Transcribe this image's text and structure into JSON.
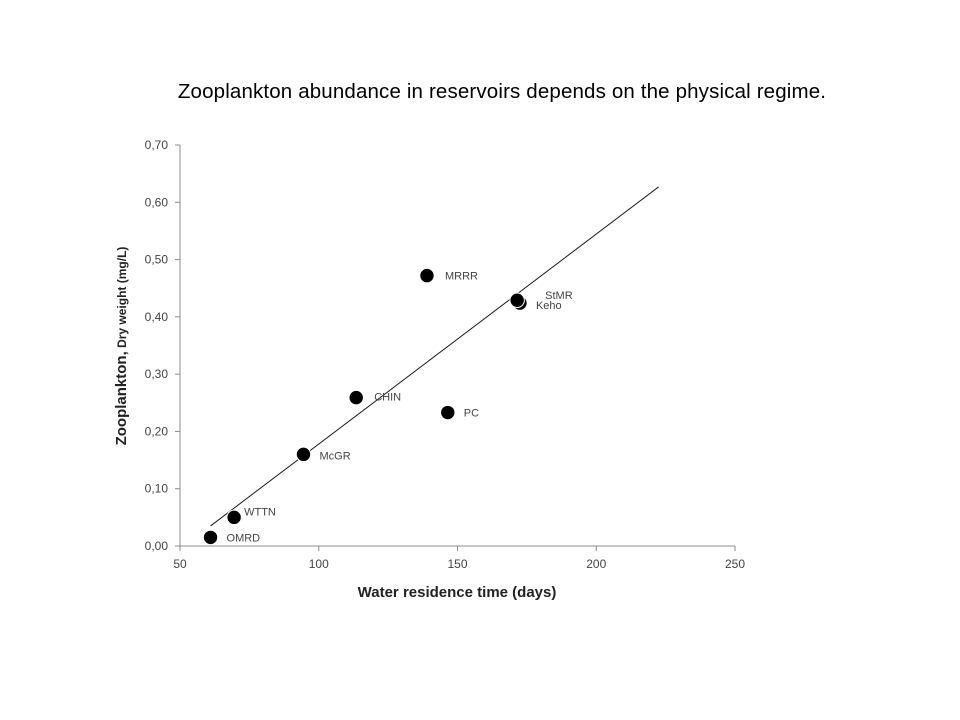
{
  "slide": {
    "title": "Zooplankton abundance in reservoirs depends on the physical regime."
  },
  "chart_data": {
    "type": "scatter",
    "xlabel": "Water residence time (days)",
    "ylabel": "Zooplankton, Dry weight (mg/L)",
    "ylabel_main": "Zooplankton,",
    "ylabel_sub": " Dry weight (mg/L)",
    "xlim": [
      50,
      250
    ],
    "ylim": [
      0,
      0.7
    ],
    "x_ticks": [
      50,
      100,
      150,
      200,
      250
    ],
    "x_tick_labels": [
      "50",
      "100",
      "150",
      "200",
      "250"
    ],
    "y_ticks": [
      0,
      0.1,
      0.2,
      0.3,
      0.4,
      0.5,
      0.6,
      0.7
    ],
    "y_tick_labels": [
      "0,00",
      "0,10",
      "0,20",
      "0,30",
      "0,40",
      "0,50",
      "0,60",
      "0,70"
    ],
    "grid": false,
    "legend": "none",
    "marker_color": "#000000",
    "points": [
      {
        "label": "OMRD",
        "x": 61,
        "y": 0.015
      },
      {
        "label": "WTTN",
        "x": 69.5,
        "y": 0.05
      },
      {
        "label": "McGR",
        "x": 94.5,
        "y": 0.16
      },
      {
        "label": "CHIN",
        "x": 113.5,
        "y": 0.259
      },
      {
        "label": "MRRR",
        "x": 139,
        "y": 0.472
      },
      {
        "label": "PC",
        "x": 146.5,
        "y": 0.233
      },
      {
        "label": "Keho",
        "x": 172.5,
        "y": 0.424
      },
      {
        "label": "StMR",
        "x": 171.5,
        "y": 0.429
      }
    ],
    "trendline": {
      "type": "linear",
      "x": [
        61,
        222.5
      ],
      "y": [
        0.035,
        0.627
      ]
    }
  }
}
